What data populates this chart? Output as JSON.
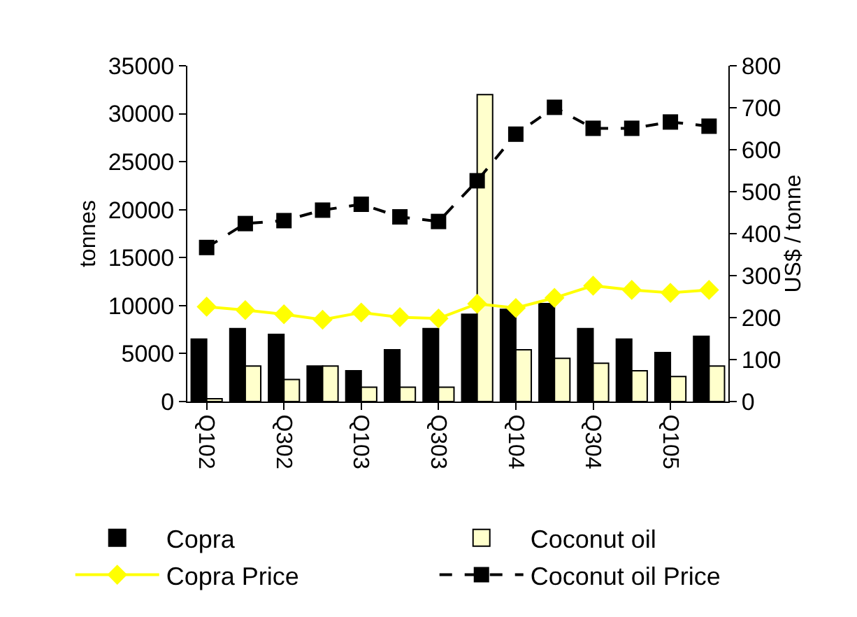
{
  "chart_data": {
    "type": "bar",
    "categories": [
      "Q102",
      null,
      "Q302",
      null,
      "Q103",
      null,
      "Q303",
      null,
      "Q104",
      null,
      "Q304",
      null,
      "Q105",
      null
    ],
    "ylabel": "tonnes",
    "y2label": "US$ / tonne",
    "ylim": [
      0,
      35000
    ],
    "yticks": [
      0,
      5000,
      10000,
      15000,
      20000,
      25000,
      30000,
      35000
    ],
    "y2lim": [
      0,
      800
    ],
    "y2ticks": [
      0,
      100,
      200,
      300,
      400,
      500,
      600,
      700,
      800
    ],
    "legend": "bottom",
    "series": [
      {
        "name": "Copra",
        "color": "#000000",
        "values": [
          6500,
          7600,
          7000,
          3700,
          3200,
          5400,
          7600,
          9100,
          9600,
          10200,
          7600,
          6500,
          5100,
          6800
        ]
      },
      {
        "name": "Coconut oil",
        "color": "#ffffcc",
        "values": [
          300,
          3700,
          2300,
          3700,
          1500,
          1500,
          1500,
          32000,
          5400,
          4500,
          4000,
          3200,
          2600,
          3700
        ]
      },
      {
        "name": "Copra Price",
        "type": "line",
        "axis": "y2",
        "color": "#ffff00",
        "marker": "diamond",
        "line_style": "solid",
        "values": [
          226,
          218,
          208,
          195,
          212,
          201,
          198,
          233,
          223,
          247,
          276,
          266,
          259,
          266
        ]
      },
      {
        "name": "Coconut oil Price",
        "type": "line",
        "axis": "y2",
        "color": "#000000",
        "marker": "square",
        "line_style": "dashed",
        "values": [
          367,
          424,
          431,
          456,
          470,
          440,
          429,
          526,
          637,
          701,
          651,
          651,
          666,
          656
        ]
      }
    ]
  }
}
